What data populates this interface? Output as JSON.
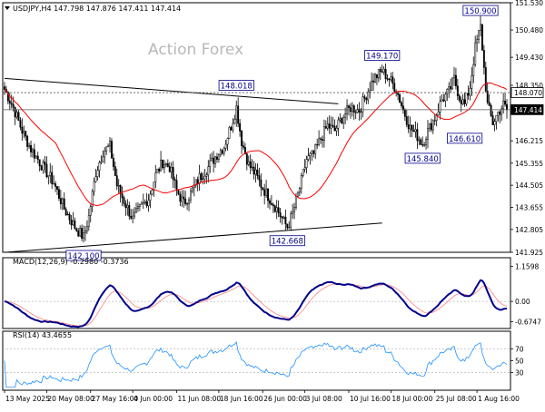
{
  "chart_data": [
    {
      "type": "candlestick",
      "title": "USDJPY,H4  147.798 147.876 147.411 147.414",
      "watermark": "Action Forex",
      "ylim": [
        141.925,
        151.53
      ],
      "yticks": [
        {
          "value": 151.53,
          "label": "151.530"
        },
        {
          "value": 150.48,
          "label": "150.480"
        },
        {
          "value": 149.43,
          "label": "149.430"
        },
        {
          "value": 148.35,
          "label": "148.350"
        },
        {
          "value": 147.32,
          "label": "147.320"
        },
        {
          "value": 146.215,
          "label": "146.215"
        },
        {
          "value": 145.355,
          "label": "145.355"
        },
        {
          "value": 144.505,
          "label": "144.505"
        },
        {
          "value": 143.655,
          "label": "143.655"
        },
        {
          "value": 142.805,
          "label": "142.805"
        },
        {
          "value": 141.925,
          "label": "141.925"
        }
      ],
      "price_tags": [
        {
          "value": 148.07,
          "label": "148.070",
          "style": "outline"
        },
        {
          "value": 147.414,
          "label": "147.414",
          "style": "filled"
        }
      ],
      "horizontal_lines": [
        {
          "value": 148.07,
          "style": "dashed"
        },
        {
          "value": 147.414,
          "style": "solid"
        }
      ],
      "annotations": [
        {
          "bar": 271,
          "value": 150.9,
          "label": "150.900",
          "anchor": "high"
        },
        {
          "bar": 215,
          "value": 149.17,
          "label": "149.170",
          "anchor": "high"
        },
        {
          "bar": 132,
          "value": 148.018,
          "label": "148.018",
          "anchor": "high"
        },
        {
          "bar": 262,
          "value": 146.61,
          "label": "146.610",
          "anchor": "low"
        },
        {
          "bar": 238,
          "value": 145.84,
          "label": "145.840",
          "anchor": "low"
        },
        {
          "bar": 161,
          "value": 142.668,
          "label": "142.668",
          "anchor": "low"
        },
        {
          "bar": 45,
          "value": 142.1,
          "label": "142.100",
          "anchor": "low"
        }
      ],
      "trendlines": [
        {
          "from": [
            0,
            148.62
          ],
          "to": [
            190,
            147.64
          ]
        },
        {
          "from": [
            0,
            141.92
          ],
          "to": [
            215,
            143.05
          ]
        }
      ],
      "moving_average_color": "#ff0000",
      "ohlc_keypoints": [
        [
          0,
          148.2
        ],
        [
          5,
          147.5
        ],
        [
          10,
          146.6
        ],
        [
          15,
          145.9
        ],
        [
          22,
          145.2
        ],
        [
          28,
          144.6
        ],
        [
          34,
          143.6
        ],
        [
          40,
          142.9
        ],
        [
          45,
          142.5
        ],
        [
          48,
          143.3
        ],
        [
          52,
          145.0
        ],
        [
          56,
          145.8
        ],
        [
          60,
          146.0
        ],
        [
          64,
          144.5
        ],
        [
          68,
          143.9
        ],
        [
          73,
          143.2
        ],
        [
          78,
          143.7
        ],
        [
          82,
          144.0
        ],
        [
          86,
          144.9
        ],
        [
          90,
          145.4
        ],
        [
          94,
          145.2
        ],
        [
          98,
          144.3
        ],
        [
          102,
          143.8
        ],
        [
          106,
          144.2
        ],
        [
          111,
          144.8
        ],
        [
          116,
          145.2
        ],
        [
          121,
          145.7
        ],
        [
          125,
          146.0
        ],
        [
          129,
          146.8
        ],
        [
          132,
          147.5
        ],
        [
          135,
          146.2
        ],
        [
          139,
          145.3
        ],
        [
          143,
          144.9
        ],
        [
          147,
          144.4
        ],
        [
          151,
          144.0
        ],
        [
          155,
          143.6
        ],
        [
          159,
          143.1
        ],
        [
          161,
          142.9
        ],
        [
          164,
          143.4
        ],
        [
          168,
          144.4
        ],
        [
          172,
          145.5
        ],
        [
          176,
          145.7
        ],
        [
          180,
          146.3
        ],
        [
          184,
          146.8
        ],
        [
          188,
          146.6
        ],
        [
          192,
          147.1
        ],
        [
          197,
          147.5
        ],
        [
          202,
          147.4
        ],
        [
          206,
          148.0
        ],
        [
          210,
          148.6
        ],
        [
          215,
          148.9
        ],
        [
          219,
          148.6
        ],
        [
          223,
          148.2
        ],
        [
          227,
          147.4
        ],
        [
          231,
          146.7
        ],
        [
          235,
          146.4
        ],
        [
          238,
          146.1
        ],
        [
          241,
          146.6
        ],
        [
          245,
          147.1
        ],
        [
          249,
          147.8
        ],
        [
          253,
          148.1
        ],
        [
          256,
          148.6
        ],
        [
          259,
          147.9
        ],
        [
          262,
          147.6
        ],
        [
          265,
          148.3
        ],
        [
          268,
          149.8
        ],
        [
          271,
          150.6
        ],
        [
          273,
          149.0
        ],
        [
          275,
          147.6
        ],
        [
          278,
          146.9
        ],
        [
          281,
          147.3
        ],
        [
          284,
          147.6
        ],
        [
          286,
          147.414
        ]
      ]
    },
    {
      "type": "line",
      "title": "MACD(12,26,9) -0.2980 -0.3736",
      "ylim": [
        -0.9,
        1.45
      ],
      "yticks": [
        {
          "value": 1.1598,
          "label": "1.1598"
        },
        {
          "value": 0.0,
          "label": "0.00"
        },
        {
          "value": -0.6747,
          "label": "-0.6747"
        }
      ],
      "series": [
        {
          "key": "macd",
          "color": "#00008b"
        },
        {
          "key": "signal",
          "color": "#ff8080"
        }
      ]
    },
    {
      "type": "line",
      "title": "RSI(14) 43.4655",
      "ylim": [
        0,
        100
      ],
      "yticks": [
        {
          "value": 70,
          "label": "70"
        },
        {
          "value": 50,
          "label": "50"
        },
        {
          "value": 30,
          "label": "30"
        }
      ],
      "series": [
        {
          "key": "rsi",
          "color": "#1e90ff"
        }
      ]
    }
  ],
  "time_axis": {
    "labels": [
      {
        "bar": 0,
        "label": "13 May 2025"
      },
      {
        "bar": 24,
        "label": "20 May 08:00"
      },
      {
        "bar": 49,
        "label": "27 May 16:00"
      },
      {
        "bar": 73,
        "label": "4 Jun 00:00"
      },
      {
        "bar": 98,
        "label": "11 Jun 08:00"
      },
      {
        "bar": 122,
        "label": "18 Jun 16:00"
      },
      {
        "bar": 147,
        "label": "26 Jun 00:00"
      },
      {
        "bar": 171,
        "label": "3 Jul 08:00"
      },
      {
        "bar": 196,
        "label": "10 Jul 16:00"
      },
      {
        "bar": 220,
        "label": "18 Jul 00:00"
      },
      {
        "bar": 245,
        "label": "25 Jul 08:00"
      },
      {
        "bar": 269,
        "label": "1 Aug 16:00"
      }
    ]
  }
}
